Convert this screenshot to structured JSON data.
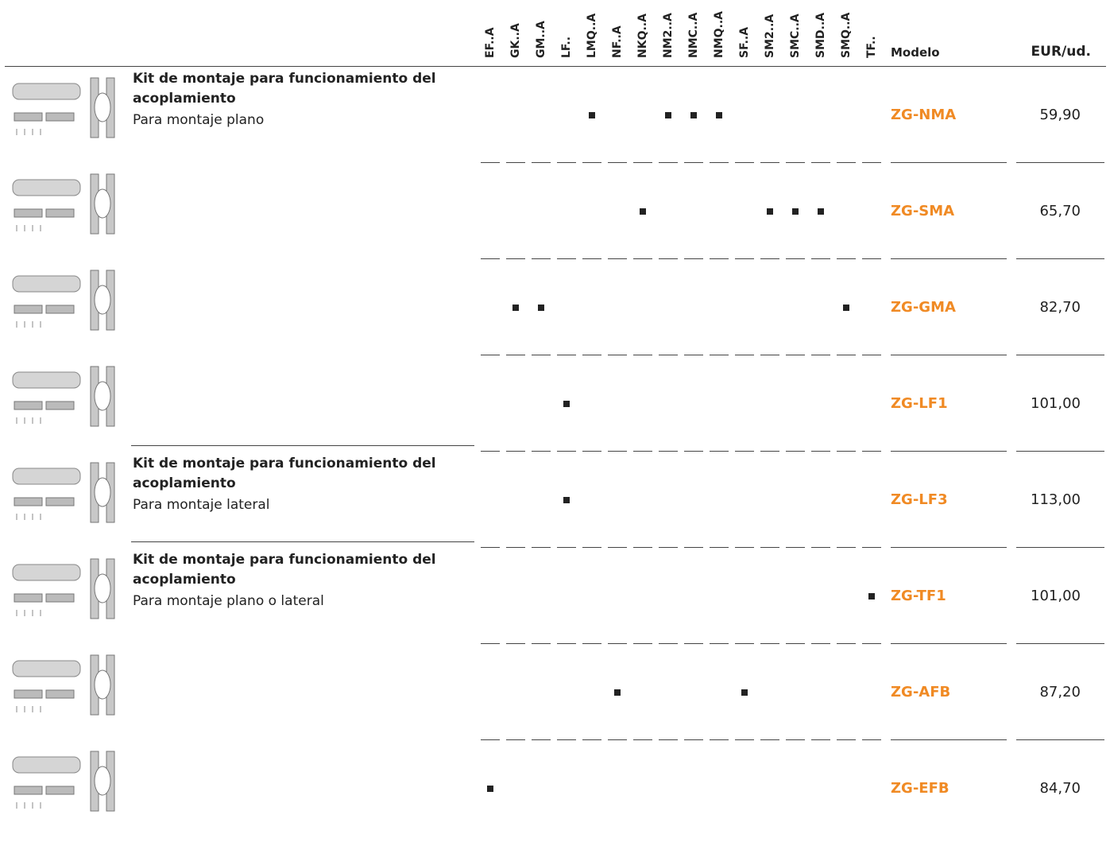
{
  "columns": [
    "EF..A",
    "GK..A",
    "GM..A",
    "LF..",
    "LMQ..A",
    "NF..A",
    "NKQ..A",
    "NM2..A",
    "NMC..A",
    "NMQ..A",
    "SF..A",
    "SM2..A",
    "SMC..A",
    "SMD..A",
    "SMQ..A",
    "TF.."
  ],
  "model_header": "Modelo",
  "price_header": "EUR/ud.",
  "rows": [
    {
      "title": "Kit de montaje para funcionamiento del acoplamiento",
      "subtitle": "Para montaje plano",
      "fits": [
        false,
        false,
        false,
        false,
        true,
        false,
        false,
        true,
        true,
        true,
        false,
        false,
        false,
        false,
        false,
        false
      ],
      "model": "ZG-NMA",
      "price": "59,90"
    },
    {
      "fits": [
        false,
        false,
        false,
        false,
        false,
        false,
        true,
        false,
        false,
        false,
        false,
        true,
        true,
        true,
        false,
        false
      ],
      "model": "ZG-SMA",
      "price": "65,70"
    },
    {
      "fits": [
        false,
        true,
        true,
        false,
        false,
        false,
        false,
        false,
        false,
        false,
        false,
        false,
        false,
        false,
        true,
        false
      ],
      "model": "ZG-GMA",
      "price": "82,70"
    },
    {
      "fits": [
        false,
        false,
        false,
        true,
        false,
        false,
        false,
        false,
        false,
        false,
        false,
        false,
        false,
        false,
        false,
        false
      ],
      "model": "ZG-LF1",
      "price": "101,00"
    },
    {
      "title": "Kit de montaje para funcionamiento del acoplamiento",
      "subtitle": "Para montaje lateral",
      "fits": [
        false,
        false,
        false,
        true,
        false,
        false,
        false,
        false,
        false,
        false,
        false,
        false,
        false,
        false,
        false,
        false
      ],
      "model": "ZG-LF3",
      "price": "113,00"
    },
    {
      "title": "Kit de montaje para funcionamiento del acoplamiento",
      "subtitle": "Para montaje plano o lateral",
      "fits": [
        false,
        false,
        false,
        false,
        false,
        false,
        false,
        false,
        false,
        false,
        false,
        false,
        false,
        false,
        false,
        true
      ],
      "model": "ZG-TF1",
      "price": "101,00"
    },
    {
      "fits": [
        false,
        false,
        false,
        false,
        false,
        true,
        false,
        false,
        false,
        false,
        true,
        false,
        false,
        false,
        false,
        false
      ],
      "model": "ZG-AFB",
      "price": "87,20"
    },
    {
      "fits": [
        true,
        false,
        false,
        false,
        false,
        false,
        false,
        false,
        false,
        false,
        false,
        false,
        false,
        false,
        false,
        false
      ],
      "model": "ZG-EFB",
      "price": "84,70"
    }
  ]
}
